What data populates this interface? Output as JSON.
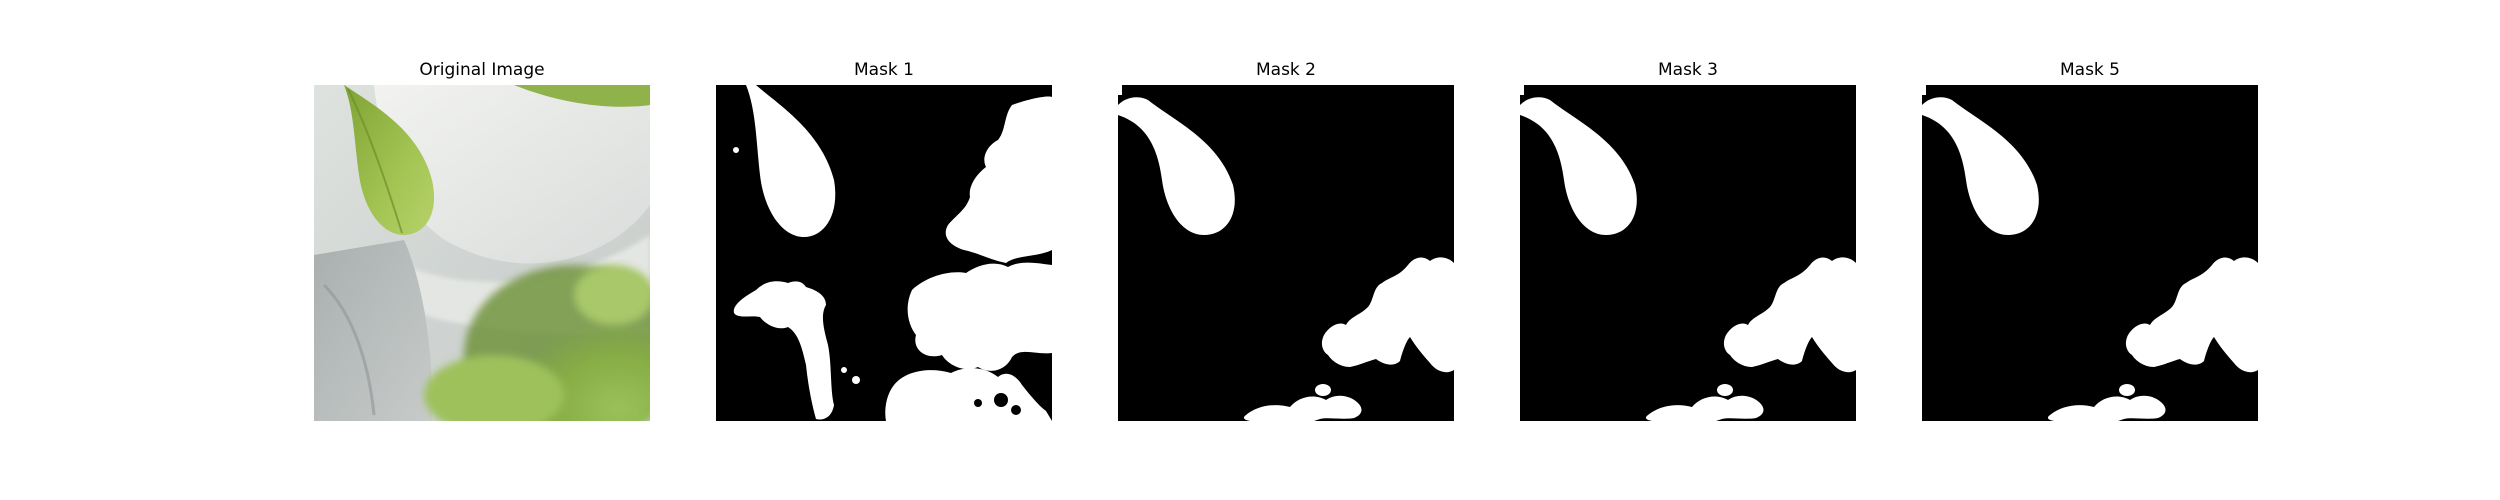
{
  "figure": {
    "panels": [
      {
        "title": "Original Image",
        "kind": "photo"
      },
      {
        "title": "Mask 1",
        "kind": "mask"
      },
      {
        "title": "Mask 2",
        "kind": "mask"
      },
      {
        "title": "Mask 3",
        "kind": "mask"
      },
      {
        "title": "Mask 5",
        "kind": "mask"
      }
    ]
  },
  "colors": {
    "background": "#ffffff",
    "mask_background": "#000000",
    "mask_foreground": "#ffffff",
    "leaf_green": "#9bbf3f",
    "leaf_dark": "#6f8f2a",
    "white_petal": "#e9ebe8",
    "grey_petal": "#b7bcbc",
    "foliage_green": "#88b04a"
  }
}
